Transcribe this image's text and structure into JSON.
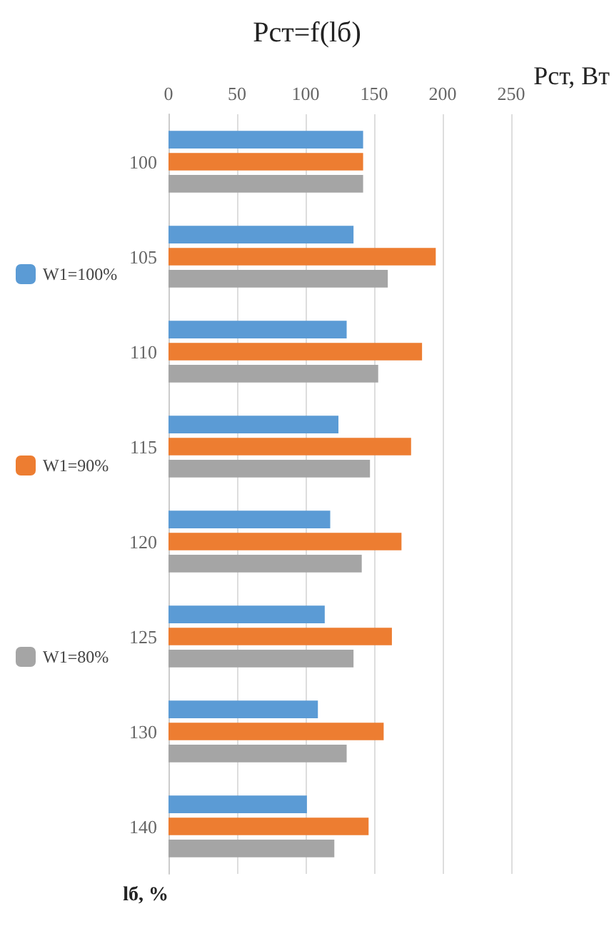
{
  "chart_data": {
    "type": "bar",
    "orientation": "horizontal",
    "title": "Рст=f(lб)",
    "xlabel": "Рст, Вт",
    "ylabel": "lб, %",
    "categories": [
      "100",
      "105",
      "110",
      "115",
      "120",
      "125",
      "130",
      "140"
    ],
    "series": [
      {
        "name": "W1=100%",
        "color": "#5b9bd5",
        "values": [
          142,
          135,
          130,
          124,
          118,
          114,
          109,
          101
        ]
      },
      {
        "name": "W1=90%",
        "color": "#ed7d31",
        "values": [
          142,
          195,
          185,
          177,
          170,
          163,
          157,
          146
        ]
      },
      {
        "name": "W1=80%",
        "color": "#a5a5a5",
        "values": [
          142,
          160,
          153,
          147,
          141,
          135,
          130,
          121
        ]
      }
    ],
    "xlim": [
      0,
      250
    ],
    "xticks": [
      0,
      50,
      100,
      150,
      200,
      250
    ],
    "grid": "x",
    "legend": "left"
  }
}
